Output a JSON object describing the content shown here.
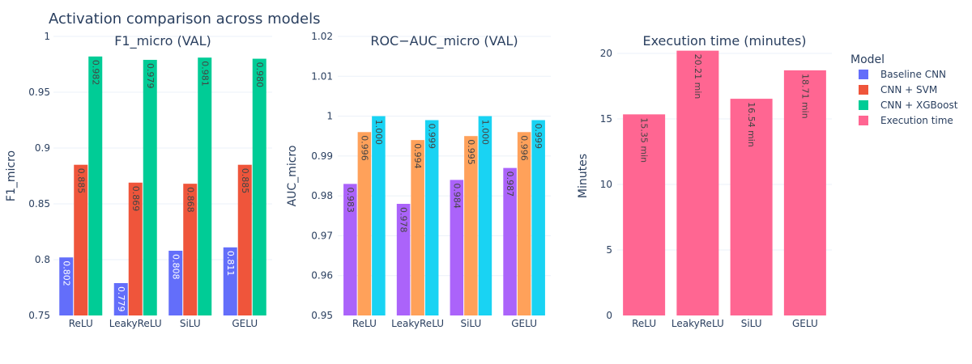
{
  "title": "Activation comparison across models",
  "legend": {
    "title": "Model",
    "items": [
      {
        "label": "Baseline CNN",
        "color": "#636efa"
      },
      {
        "label": "CNN + SVM",
        "color": "#ef553b"
      },
      {
        "label": "CNN + XGBoost",
        "color": "#00cc96"
      },
      {
        "label": "Execution time",
        "color": "#ff6692"
      }
    ]
  },
  "chart_data": [
    {
      "type": "bar",
      "title": "F1_micro (VAL)",
      "xlabel": "",
      "ylabel": "F1_micro",
      "ylim": [
        0.75,
        1.0
      ],
      "yticks": [
        0.75,
        0.8,
        0.85,
        0.9,
        0.95,
        1
      ],
      "ytick_labels": [
        "0.75",
        "0.8",
        "0.85",
        "0.9",
        "0.95",
        "1"
      ],
      "categories": [
        "ReLU",
        "LeakyReLU",
        "SiLU",
        "GELU"
      ],
      "series": [
        {
          "name": "Baseline CNN",
          "color": "#636efa",
          "label_color": "#ffffff",
          "values": [
            0.802,
            0.779,
            0.808,
            0.811
          ],
          "labels": [
            "0.802",
            "0.779",
            "0.808",
            "0.811"
          ]
        },
        {
          "name": "CNN + SVM",
          "color": "#ef553b",
          "label_color": "#444444",
          "values": [
            0.885,
            0.869,
            0.868,
            0.885
          ],
          "labels": [
            "0.885",
            "0.869",
            "0.868",
            "0.885"
          ]
        },
        {
          "name": "CNN + XGBoost",
          "color": "#00cc96",
          "label_color": "#444444",
          "values": [
            0.982,
            0.979,
            0.981,
            0.98
          ],
          "labels": [
            "0.982",
            "0.979",
            "0.981",
            "0.980"
          ]
        }
      ],
      "grid": true
    },
    {
      "type": "bar",
      "title": "ROC−AUC_micro (VAL)",
      "xlabel": "",
      "ylabel": "AUC_micro",
      "ylim": [
        0.95,
        1.02
      ],
      "yticks": [
        0.95,
        0.96,
        0.97,
        0.98,
        0.99,
        1,
        1.01,
        1.02
      ],
      "ytick_labels": [
        "0.95",
        "0.96",
        "0.97",
        "0.98",
        "0.99",
        "1",
        "1.01",
        "1.02"
      ],
      "categories": [
        "ReLU",
        "LeakyReLU",
        "SiLU",
        "GELU"
      ],
      "series": [
        {
          "name": "",
          "color": "#ab63fa",
          "label_color": "#444444",
          "values": [
            0.983,
            0.978,
            0.984,
            0.987
          ],
          "labels": [
            "0.983",
            "0.978",
            "0.984",
            "0.987"
          ]
        },
        {
          "name": "",
          "color": "#ffa15a",
          "label_color": "#444444",
          "values": [
            0.996,
            0.994,
            0.995,
            0.996
          ],
          "labels": [
            "0.996",
            "0.994",
            "0.995",
            "0.996"
          ]
        },
        {
          "name": "",
          "color": "#19d3f3",
          "label_color": "#444444",
          "values": [
            1.0,
            0.999,
            1.0,
            0.999
          ],
          "labels": [
            "1.000",
            "0.999",
            "1.000",
            "0.999"
          ]
        }
      ],
      "grid": true
    },
    {
      "type": "bar",
      "title": "Execution time (minutes)",
      "xlabel": "",
      "ylabel": "Minutes",
      "ylim": [
        0,
        21.3
      ],
      "yticks": [
        0,
        5,
        10,
        15,
        20
      ],
      "ytick_labels": [
        "0",
        "5",
        "10",
        "15",
        "20"
      ],
      "categories": [
        "ReLU",
        "LeakyReLU",
        "SiLU",
        "GELU"
      ],
      "series": [
        {
          "name": "Execution time",
          "color": "#ff6692",
          "label_color": "#444444",
          "values": [
            15.35,
            20.21,
            16.54,
            18.71
          ],
          "labels": [
            "15.35 min",
            "20.21 min",
            "16.54 min",
            "18.71 min"
          ]
        }
      ],
      "grid": true
    }
  ]
}
